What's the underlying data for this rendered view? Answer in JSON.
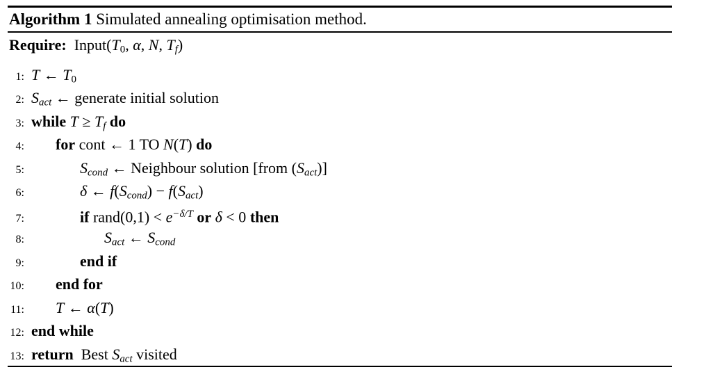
{
  "colors": {
    "background": "#ffffff",
    "text": "#000000",
    "rule": "#000000"
  },
  "algorithm": {
    "caption": [
      {
        "t": "Algorithm 1",
        "s": "bf"
      },
      {
        "t": " Simulated annealing optimisation method.",
        "s": "rm"
      }
    ],
    "require": [
      {
        "t": "Require:",
        "s": "bf"
      },
      {
        "t": "  Input(",
        "s": "rm"
      },
      {
        "t": "T",
        "s": "it"
      },
      {
        "t": "0",
        "s": "subrm"
      },
      {
        "t": ", ",
        "s": "rm"
      },
      {
        "t": "α",
        "s": "it"
      },
      {
        "t": ", ",
        "s": "rm"
      },
      {
        "t": "N",
        "s": "it"
      },
      {
        "t": ", ",
        "s": "rm"
      },
      {
        "t": "T",
        "s": "it"
      },
      {
        "t": "f",
        "s": "sub"
      },
      {
        "t": ")",
        "s": "rm"
      }
    ],
    "lines": [
      {
        "num": "1:",
        "indent": 0,
        "segs": [
          {
            "t": "T",
            "s": "it"
          },
          {
            "t": " ← ",
            "s": "rm"
          },
          {
            "t": "T",
            "s": "it"
          },
          {
            "t": "0",
            "s": "subrm"
          }
        ]
      },
      {
        "num": "2:",
        "indent": 0,
        "segs": [
          {
            "t": "S",
            "s": "it"
          },
          {
            "t": "act",
            "s": "sub"
          },
          {
            "t": " ← generate initial solution",
            "s": "rm"
          }
        ]
      },
      {
        "num": "3:",
        "indent": 0,
        "segs": [
          {
            "t": "while",
            "s": "bf"
          },
          {
            "t": " ",
            "s": "rm"
          },
          {
            "t": "T",
            "s": "it"
          },
          {
            "t": " ≥ ",
            "s": "rm"
          },
          {
            "t": "T",
            "s": "it"
          },
          {
            "t": "f",
            "s": "sub"
          },
          {
            "t": " ",
            "s": "rm"
          },
          {
            "t": "do",
            "s": "bf"
          }
        ]
      },
      {
        "num": "4:",
        "indent": 1,
        "segs": [
          {
            "t": "for",
            "s": "bf"
          },
          {
            "t": " cont ← 1 TO ",
            "s": "rm"
          },
          {
            "t": "N",
            "s": "it"
          },
          {
            "t": "(",
            "s": "rm"
          },
          {
            "t": "T",
            "s": "it"
          },
          {
            "t": ") ",
            "s": "rm"
          },
          {
            "t": "do",
            "s": "bf"
          }
        ]
      },
      {
        "num": "5:",
        "indent": 2,
        "segs": [
          {
            "t": "S",
            "s": "it"
          },
          {
            "t": "cond",
            "s": "sub"
          },
          {
            "t": " ← Neighbour solution [from (",
            "s": "rm"
          },
          {
            "t": "S",
            "s": "it"
          },
          {
            "t": "act",
            "s": "sub"
          },
          {
            "t": ")]",
            "s": "rm"
          }
        ]
      },
      {
        "num": "6:",
        "indent": 2,
        "segs": [
          {
            "t": "δ",
            "s": "it"
          },
          {
            "t": " ← ",
            "s": "rm"
          },
          {
            "t": "f",
            "s": "it"
          },
          {
            "t": "(",
            "s": "rm"
          },
          {
            "t": "S",
            "s": "it"
          },
          {
            "t": "cond",
            "s": "sub"
          },
          {
            "t": ") − ",
            "s": "rm"
          },
          {
            "t": "f",
            "s": "it"
          },
          {
            "t": "(",
            "s": "rm"
          },
          {
            "t": "S",
            "s": "it"
          },
          {
            "t": "act",
            "s": "sub"
          },
          {
            "t": ")",
            "s": "rm"
          }
        ]
      },
      {
        "num": "7:",
        "indent": 2,
        "segs": [
          {
            "t": "if",
            "s": "bf"
          },
          {
            "t": " rand(0,1) < ",
            "s": "rm"
          },
          {
            "t": "e",
            "s": "it"
          },
          {
            "t": "−δ/T",
            "s": "sup"
          },
          {
            "t": " ",
            "s": "rm"
          },
          {
            "t": "or",
            "s": "bf"
          },
          {
            "t": " ",
            "s": "rm"
          },
          {
            "t": "δ",
            "s": "it"
          },
          {
            "t": " < 0 ",
            "s": "rm"
          },
          {
            "t": "then",
            "s": "bf"
          }
        ]
      },
      {
        "num": "8:",
        "indent": 3,
        "segs": [
          {
            "t": "S",
            "s": "it"
          },
          {
            "t": "act",
            "s": "sub"
          },
          {
            "t": " ← ",
            "s": "rm"
          },
          {
            "t": "S",
            "s": "it"
          },
          {
            "t": "cond",
            "s": "sub"
          }
        ]
      },
      {
        "num": "9:",
        "indent": 2,
        "segs": [
          {
            "t": "end if",
            "s": "bf"
          }
        ]
      },
      {
        "num": "10:",
        "indent": 1,
        "segs": [
          {
            "t": "end for",
            "s": "bf"
          }
        ]
      },
      {
        "num": "11:",
        "indent": 1,
        "segs": [
          {
            "t": "T",
            "s": "it"
          },
          {
            "t": " ← ",
            "s": "rm"
          },
          {
            "t": "α",
            "s": "it"
          },
          {
            "t": "(",
            "s": "rm"
          },
          {
            "t": "T",
            "s": "it"
          },
          {
            "t": ")",
            "s": "rm"
          }
        ]
      },
      {
        "num": "12:",
        "indent": 0,
        "segs": [
          {
            "t": "end while",
            "s": "bf"
          }
        ]
      },
      {
        "num": "13:",
        "indent": 0,
        "segs": [
          {
            "t": "return",
            "s": "bf"
          },
          {
            "t": "  Best ",
            "s": "rm"
          },
          {
            "t": "S",
            "s": "it"
          },
          {
            "t": "act",
            "s": "sub"
          },
          {
            "t": " visited",
            "s": "rm"
          }
        ]
      }
    ]
  }
}
